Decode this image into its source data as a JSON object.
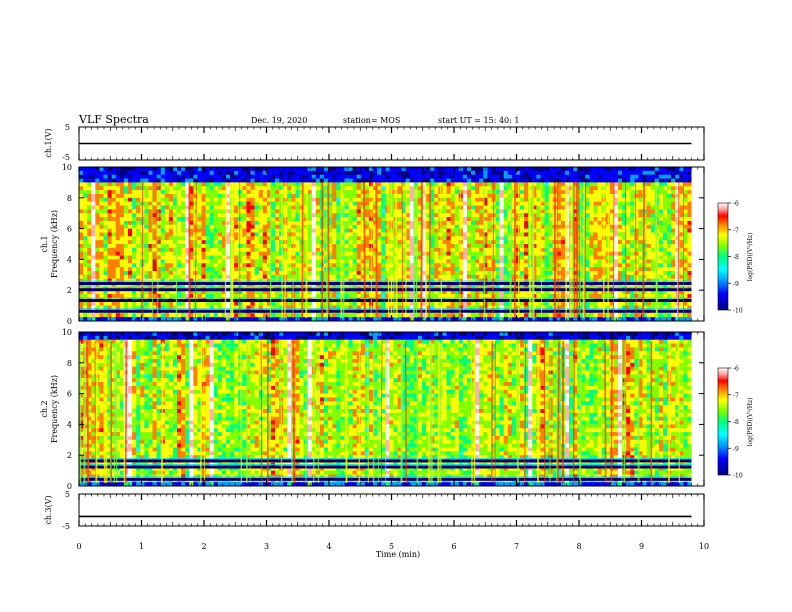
{
  "header": {
    "title": "VLF Spectra",
    "date": "Dec. 19, 2020",
    "station": "station= MOS",
    "start": "start  UT =   15: 40: 1"
  },
  "chart_data": {
    "type": "heatmap",
    "xlabel": "Time  (min)",
    "xlim": [
      0,
      10
    ],
    "x_ticks": [
      "0",
      "1",
      "2",
      "3",
      "4",
      "5",
      "6",
      "7",
      "8",
      "9",
      "10"
    ],
    "panels": [
      {
        "id": "ch1v",
        "type": "line",
        "ylabel": "ch.1(V)",
        "ylim": [
          -5,
          5
        ],
        "y_ticks": [
          "5",
          "-5"
        ],
        "value": 0
      },
      {
        "id": "ch1-spec",
        "type": "heatmap",
        "ylabel_channel": "ch.1",
        "ylabel": "Frequency  (kHz)",
        "ylim": [
          0,
          10
        ],
        "y_ticks": [
          "0",
          "2",
          "4",
          "6",
          "8",
          "10"
        ],
        "band_top_khz": 9.0,
        "colorbar": {
          "label": "log(PSD)(V²/Hz)",
          "range": [
            -10,
            -6
          ],
          "ticks": [
            "-6",
            "-7",
            "-8",
            "-9",
            "-10"
          ]
        }
      },
      {
        "id": "ch2-spec",
        "type": "heatmap",
        "ylabel_channel": "ch.2",
        "ylabel": "Frequency  (kHz)",
        "ylim": [
          0,
          10
        ],
        "y_ticks": [
          "0",
          "2",
          "4",
          "6",
          "8",
          "10"
        ],
        "band_top_khz": 9.4,
        "colorbar": {
          "label": "log(PSD)(V²/Hz)",
          "range": [
            -10,
            -6
          ],
          "ticks": [
            "-6",
            "-7",
            "-8",
            "-9",
            "-10"
          ]
        }
      },
      {
        "id": "ch3v",
        "type": "line",
        "ylabel": "ch.3(V)",
        "ylim": [
          -5,
          5
        ],
        "y_ticks": [
          "5",
          "-5"
        ],
        "value": -2
      }
    ],
    "spectrogram_end_min": 9.8,
    "colormap": [
      "#000080",
      "#0000ff",
      "#00a0ff",
      "#00ffff",
      "#00ff80",
      "#80ff00",
      "#ffff00",
      "#ff8000",
      "#ff0000",
      "#ffb0b0",
      "#ffffff"
    ]
  }
}
